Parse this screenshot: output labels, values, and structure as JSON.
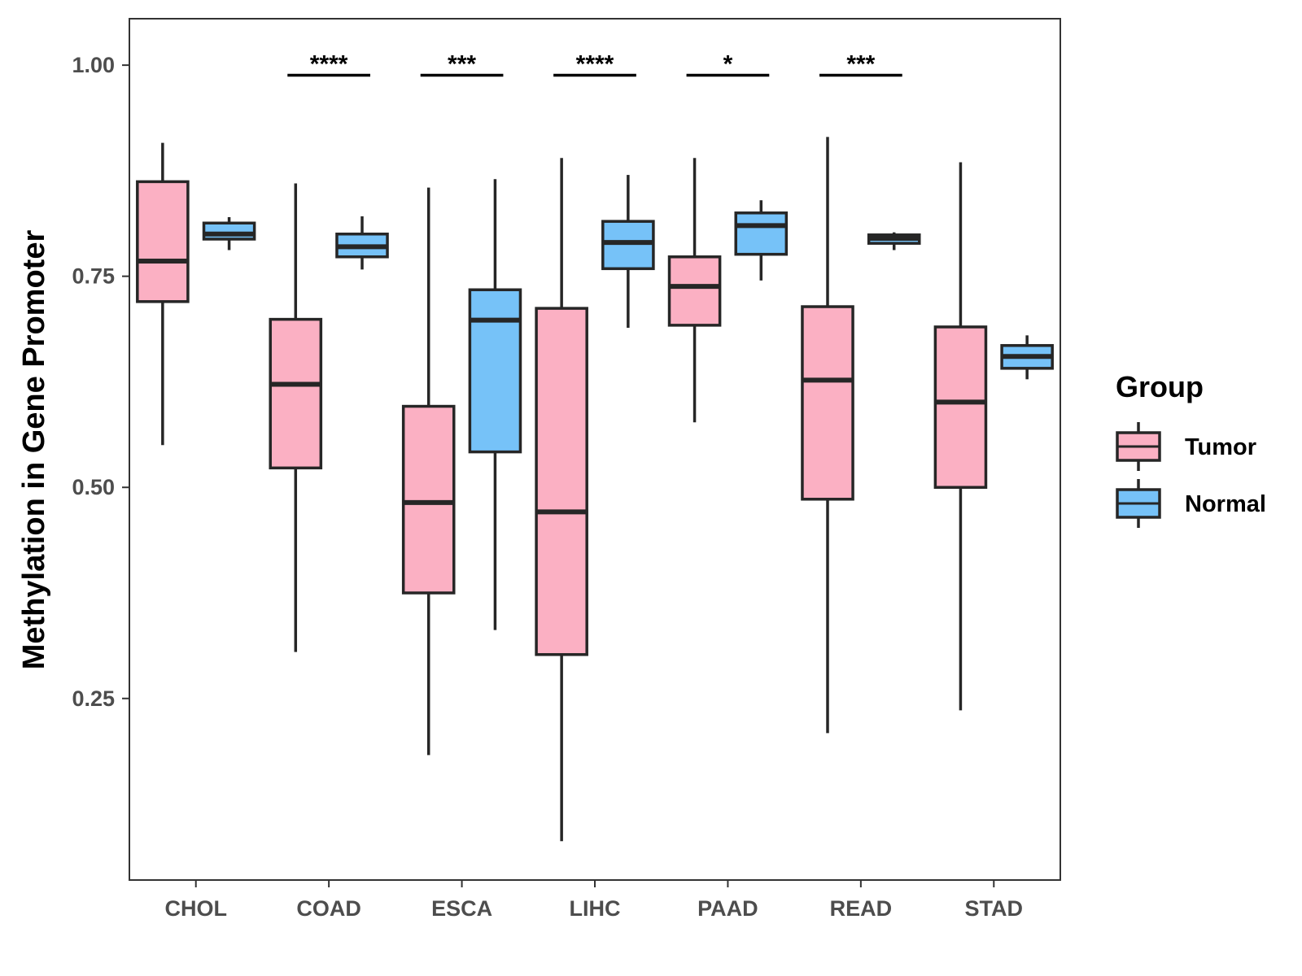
{
  "chart_data": {
    "type": "boxplot",
    "title": "",
    "xlabel": "",
    "ylabel": "Methylation in Gene Promoter",
    "ylim": [
      0.035,
      1.055
    ],
    "yticks": [
      0.25,
      0.5,
      0.75,
      1.0
    ],
    "ytick_labels": [
      "0.25",
      "0.50",
      "0.75",
      "1.00"
    ],
    "categories": [
      "CHOL",
      "COAD",
      "ESCA",
      "LIHC",
      "PAAD",
      "READ",
      "STAD"
    ],
    "legend_title": "Group",
    "legend_position": "right",
    "series": [
      {
        "name": "Tumor",
        "color": "#fbb0c3",
        "boxes": [
          {
            "min": 0.55,
            "q1": 0.72,
            "median": 0.768,
            "q3": 0.862,
            "max": 0.908
          },
          {
            "min": 0.305,
            "q1": 0.523,
            "median": 0.622,
            "q3": 0.699,
            "max": 0.86
          },
          {
            "min": 0.183,
            "q1": 0.375,
            "median": 0.482,
            "q3": 0.596,
            "max": 0.855
          },
          {
            "min": 0.081,
            "q1": 0.302,
            "median": 0.471,
            "q3": 0.712,
            "max": 0.89
          },
          {
            "min": 0.577,
            "q1": 0.692,
            "median": 0.738,
            "q3": 0.773,
            "max": 0.89
          },
          {
            "min": 0.209,
            "q1": 0.486,
            "median": 0.627,
            "q3": 0.714,
            "max": 0.915
          },
          {
            "min": 0.236,
            "q1": 0.5,
            "median": 0.601,
            "q3": 0.69,
            "max": 0.885
          }
        ]
      },
      {
        "name": "Normal",
        "color": "#76c2f8",
        "boxes": [
          {
            "min": 0.781,
            "q1": 0.794,
            "median": 0.8,
            "q3": 0.813,
            "max": 0.82
          },
          {
            "min": 0.758,
            "q1": 0.773,
            "median": 0.785,
            "q3": 0.8,
            "max": 0.821
          },
          {
            "min": 0.331,
            "q1": 0.542,
            "median": 0.698,
            "q3": 0.734,
            "max": 0.865
          },
          {
            "min": 0.689,
            "q1": 0.759,
            "median": 0.79,
            "q3": 0.815,
            "max": 0.87
          },
          {
            "min": 0.745,
            "q1": 0.776,
            "median": 0.81,
            "q3": 0.825,
            "max": 0.84
          },
          {
            "min": 0.781,
            "q1": 0.789,
            "median": 0.795,
            "q3": 0.799,
            "max": 0.802
          },
          {
            "min": 0.628,
            "q1": 0.641,
            "median": 0.655,
            "q3": 0.668,
            "max": 0.68
          }
        ]
      }
    ],
    "significance": [
      {
        "category": "COAD",
        "label": "****"
      },
      {
        "category": "ESCA",
        "label": "***"
      },
      {
        "category": "LIHC",
        "label": "****"
      },
      {
        "category": "PAAD",
        "label": "*"
      },
      {
        "category": "READ",
        "label": "***"
      }
    ],
    "significance_y": 0.988
  }
}
